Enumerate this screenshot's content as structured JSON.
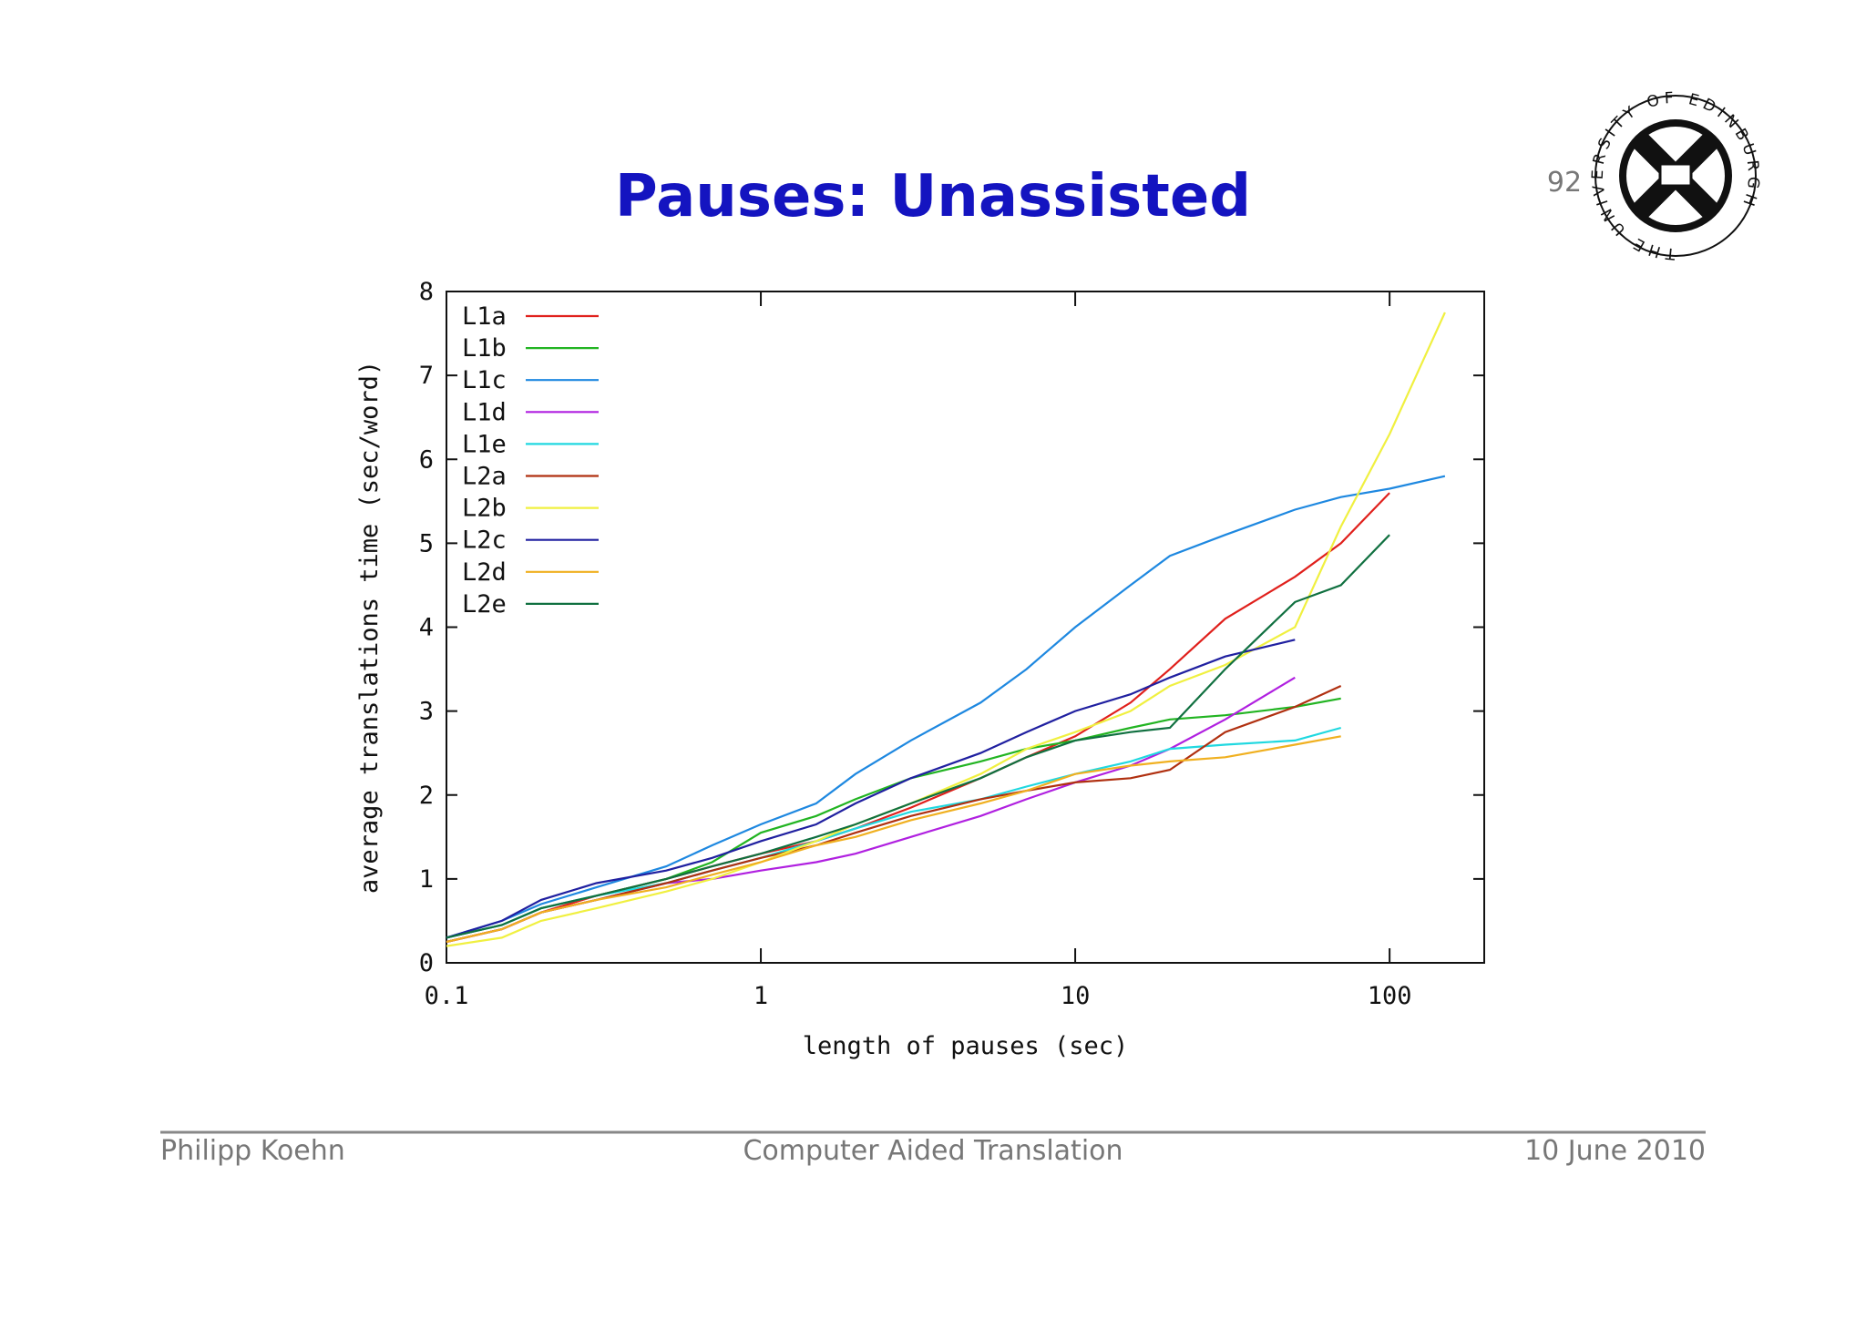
{
  "slide": {
    "title": "Pauses:  Unassisted",
    "page_number": "92",
    "logo_text": "THE UNIVERSITY OF EDINBURGH",
    "footer": {
      "left": "Philipp Koehn",
      "center": "Computer Aided Translation",
      "right": "10 June 2010"
    }
  },
  "chart_data": {
    "type": "line",
    "x_label": "length of pauses (sec)",
    "y_label": "average translations time (sec/word)",
    "xscale": "log",
    "legend": "upper left",
    "x": [
      0.1,
      0.15,
      0.2,
      0.3,
      0.5,
      0.7,
      1,
      1.5,
      2,
      3,
      5,
      7,
      10,
      15,
      20,
      30,
      50,
      70,
      100,
      150
    ],
    "xlim": [
      0.1,
      200
    ],
    "xticks": [
      0.1,
      1,
      10,
      100
    ],
    "ylim": [
      0,
      8
    ],
    "yticks": [
      0,
      1,
      2,
      3,
      4,
      5,
      6,
      7,
      8
    ],
    "series": [
      {
        "name": "L1a",
        "color": "#e0201c",
        "values": [
          0.25,
          0.4,
          0.6,
          0.8,
          1.0,
          1.15,
          1.3,
          1.45,
          1.6,
          1.85,
          2.2,
          2.45,
          2.7,
          3.1,
          3.5,
          4.1,
          4.6,
          5.0,
          5.6,
          null
        ]
      },
      {
        "name": "L1b",
        "color": "#22b422",
        "values": [
          0.3,
          0.45,
          0.65,
          0.8,
          1.0,
          1.2,
          1.55,
          1.75,
          1.95,
          2.2,
          2.4,
          2.55,
          2.65,
          2.8,
          2.9,
          2.95,
          3.05,
          3.15,
          null,
          null
        ]
      },
      {
        "name": "L1c",
        "color": "#1e88e0",
        "values": [
          0.3,
          0.5,
          0.7,
          0.9,
          1.15,
          1.4,
          1.65,
          1.9,
          2.25,
          2.65,
          3.1,
          3.5,
          4.0,
          4.5,
          4.85,
          5.1,
          5.4,
          5.55,
          5.65,
          5.8
        ]
      },
      {
        "name": "L1d",
        "color": "#b020e0",
        "values": [
          0.25,
          0.4,
          0.6,
          0.75,
          0.95,
          1.0,
          1.1,
          1.2,
          1.3,
          1.5,
          1.75,
          1.95,
          2.15,
          2.35,
          2.55,
          2.9,
          3.4,
          null,
          null,
          null
        ]
      },
      {
        "name": "L1e",
        "color": "#20d8e0",
        "values": [
          0.3,
          0.45,
          0.65,
          0.8,
          0.95,
          1.1,
          1.25,
          1.45,
          1.6,
          1.8,
          1.95,
          2.1,
          2.25,
          2.4,
          2.55,
          2.6,
          2.65,
          2.8,
          null,
          null
        ]
      },
      {
        "name": "L2a",
        "color": "#b03010",
        "values": [
          0.25,
          0.4,
          0.6,
          0.75,
          0.95,
          1.1,
          1.25,
          1.4,
          1.55,
          1.75,
          1.95,
          2.05,
          2.15,
          2.2,
          2.3,
          2.75,
          3.05,
          3.3,
          null,
          null
        ]
      },
      {
        "name": "L2b",
        "color": "#f0f040",
        "values": [
          0.2,
          0.3,
          0.5,
          0.65,
          0.85,
          1.0,
          1.2,
          1.45,
          1.65,
          1.9,
          2.25,
          2.55,
          2.75,
          3.0,
          3.3,
          3.55,
          4.0,
          5.2,
          6.3,
          7.75
        ]
      },
      {
        "name": "L2c",
        "color": "#2020a0",
        "values": [
          0.3,
          0.5,
          0.75,
          0.95,
          1.1,
          1.25,
          1.45,
          1.65,
          1.9,
          2.2,
          2.5,
          2.75,
          3.0,
          3.2,
          3.4,
          3.65,
          3.85,
          null,
          null,
          null
        ]
      },
      {
        "name": "L2d",
        "color": "#f0b020",
        "values": [
          0.25,
          0.4,
          0.6,
          0.75,
          0.9,
          1.05,
          1.2,
          1.4,
          1.5,
          1.7,
          1.9,
          2.05,
          2.25,
          2.35,
          2.4,
          2.45,
          2.6,
          2.7,
          null,
          null
        ]
      },
      {
        "name": "L2e",
        "color": "#107040",
        "values": [
          0.3,
          0.45,
          0.65,
          0.8,
          1.0,
          1.15,
          1.3,
          1.5,
          1.65,
          1.9,
          2.2,
          2.45,
          2.65,
          2.75,
          2.8,
          3.5,
          4.3,
          4.5,
          5.1,
          null
        ]
      }
    ]
  }
}
